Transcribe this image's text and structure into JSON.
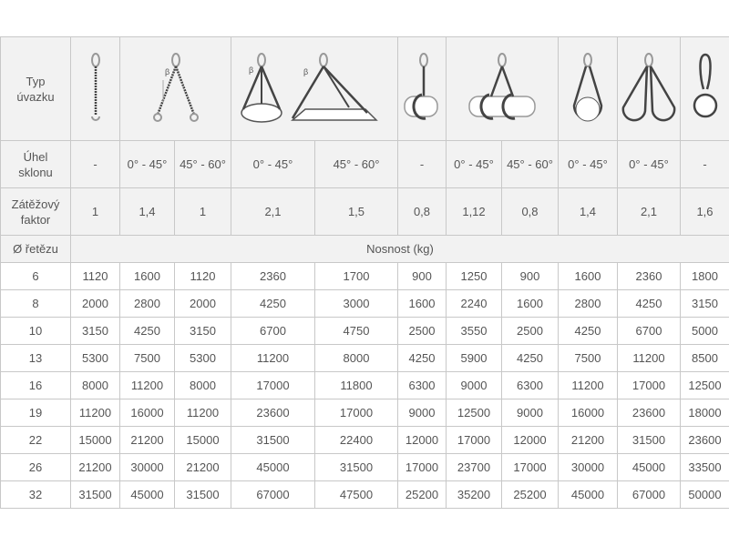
{
  "colors": {
    "grid": "#c8c8c8",
    "header_bg": "#f2f2f2",
    "text": "#555555",
    "chain": "#444444"
  },
  "row_labels": {
    "type": "Typ\núvazku",
    "angle": "Úhel\nsklonu",
    "factor": "Zátěžový\nfaktor",
    "diameter": "Ø řetězu"
  },
  "sling_types": [
    {
      "icon": "single-leg-chain-icon"
    },
    {
      "icon": "two-leg-chain-icon"
    },
    {
      "icon": "multi-leg-chain-icons"
    },
    {
      "icon": "choker-single-chain-icon"
    },
    {
      "icon": "choker-two-leg-chain-icon"
    },
    {
      "icon": "basket-single-chain-icon"
    },
    {
      "icon": "basket-double-chain-icon"
    },
    {
      "icon": "endless-loop-chain-icon"
    }
  ],
  "angles": [
    "-",
    "0° - 45°",
    "45° - 60°",
    "0° - 45°",
    "45° - 60°",
    "-",
    "0° - 45°",
    "45° - 60°",
    "0° - 45°",
    "0° - 45°",
    "-"
  ],
  "factors": [
    "1",
    "1,4",
    "1",
    "2,1",
    "1,5",
    "0,8",
    "1,12",
    "0,8",
    "1,4",
    "2,1",
    "1,6"
  ],
  "capacity_header": "Nosnost (kg)",
  "rows": [
    {
      "d": "6",
      "v": [
        "1120",
        "1600",
        "1120",
        "2360",
        "1700",
        "900",
        "1250",
        "900",
        "1600",
        "2360",
        "1800"
      ]
    },
    {
      "d": "8",
      "v": [
        "2000",
        "2800",
        "2000",
        "4250",
        "3000",
        "1600",
        "2240",
        "1600",
        "2800",
        "4250",
        "3150"
      ]
    },
    {
      "d": "10",
      "v": [
        "3150",
        "4250",
        "3150",
        "6700",
        "4750",
        "2500",
        "3550",
        "2500",
        "4250",
        "6700",
        "5000"
      ]
    },
    {
      "d": "13",
      "v": [
        "5300",
        "7500",
        "5300",
        "11200",
        "8000",
        "4250",
        "5900",
        "4250",
        "7500",
        "11200",
        "8500"
      ]
    },
    {
      "d": "16",
      "v": [
        "8000",
        "11200",
        "8000",
        "17000",
        "11800",
        "6300",
        "9000",
        "6300",
        "11200",
        "17000",
        "12500"
      ]
    },
    {
      "d": "19",
      "v": [
        "11200",
        "16000",
        "11200",
        "23600",
        "17000",
        "9000",
        "12500",
        "9000",
        "16000",
        "23600",
        "18000"
      ]
    },
    {
      "d": "22",
      "v": [
        "15000",
        "21200",
        "15000",
        "31500",
        "22400",
        "12000",
        "17000",
        "12000",
        "21200",
        "31500",
        "23600"
      ]
    },
    {
      "d": "26",
      "v": [
        "21200",
        "30000",
        "21200",
        "45000",
        "31500",
        "17000",
        "23700",
        "17000",
        "30000",
        "45000",
        "33500"
      ]
    },
    {
      "d": "32",
      "v": [
        "31500",
        "45000",
        "31500",
        "67000",
        "47500",
        "25200",
        "35200",
        "25200",
        "45000",
        "67000",
        "50000"
      ]
    }
  ]
}
